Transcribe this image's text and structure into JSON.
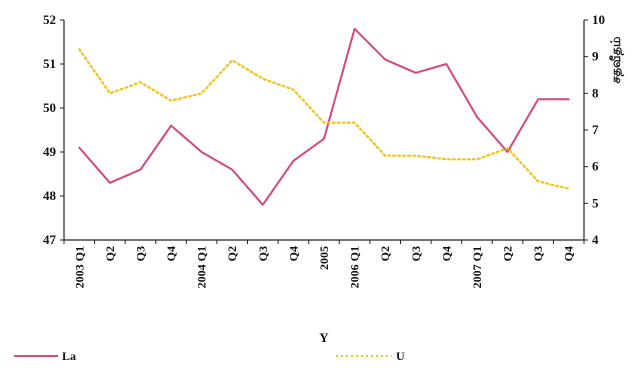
{
  "chart_data": {
    "type": "line",
    "categories": [
      "2003 Q1",
      "Q2",
      "Q3",
      "Q4",
      "2004 Q1",
      "Q2",
      "Q3",
      "Q4",
      "2005",
      "2006 Q1",
      "Q2",
      "Q3",
      "Q4",
      "2007 Q1",
      "Q2",
      "Q3",
      "Q4"
    ],
    "xlabel": "Y",
    "ylabel_right": "சதவீதம்",
    "series": [
      {
        "name": "La",
        "axis": "left",
        "color": "#d4477f",
        "style": "solid",
        "values": [
          49.1,
          48.3,
          48.6,
          49.6,
          49.0,
          48.6,
          47.8,
          48.8,
          49.3,
          51.8,
          51.1,
          50.8,
          51.0,
          49.8,
          49.0,
          50.2,
          50.2
        ]
      },
      {
        "name": "U",
        "axis": "right",
        "color": "#f2c318",
        "style": "dotted",
        "values": [
          9.2,
          8.0,
          8.3,
          7.8,
          8.0,
          8.9,
          8.4,
          8.1,
          7.2,
          7.2,
          6.3,
          6.3,
          6.2,
          6.2,
          6.5,
          5.6,
          5.4
        ]
      }
    ],
    "y_left": {
      "ticks": [
        47,
        48,
        49,
        50,
        51,
        52
      ],
      "ylim": [
        47,
        52
      ]
    },
    "y_right": {
      "ticks": [
        4,
        5,
        6,
        7,
        8,
        9,
        10
      ],
      "ylim": [
        4,
        10
      ]
    },
    "legend": {
      "placement": "bottom"
    },
    "grid": false
  }
}
